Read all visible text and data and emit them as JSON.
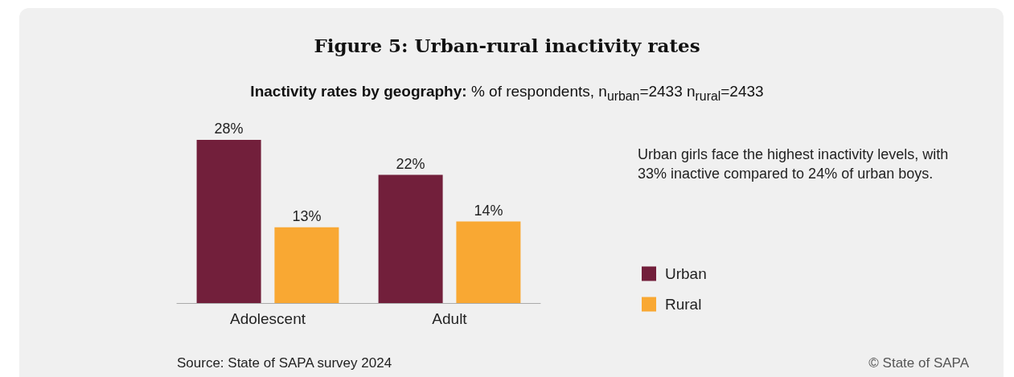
{
  "chart_data": {
    "type": "bar",
    "title": "Figure 5: Urban-rural inactivity rates",
    "subtitle": "Inactivity rates by geography: % of respondents, n$_{urban}$=2433 n$_{rural}$=2433",
    "categories": [
      "Adolescent",
      "Adult"
    ],
    "series": [
      {
        "name": "Urban",
        "color": "#721f3b",
        "values": [
          28,
          22
        ],
        "value_labels": [
          "28%",
          "22%"
        ]
      },
      {
        "name": "Rural",
        "color": "#f9a833",
        "values": [
          13,
          14
        ],
        "value_labels": [
          "13%",
          "14%"
        ]
      }
    ],
    "legend": "right",
    "annotations": [
      "Urban girls face the highest inactivity levels, with 33% inactive compared to 24% of urban boys.",
      "Source: State of SAPA survey 2024",
      "© State of SAPA"
    ]
  }
}
